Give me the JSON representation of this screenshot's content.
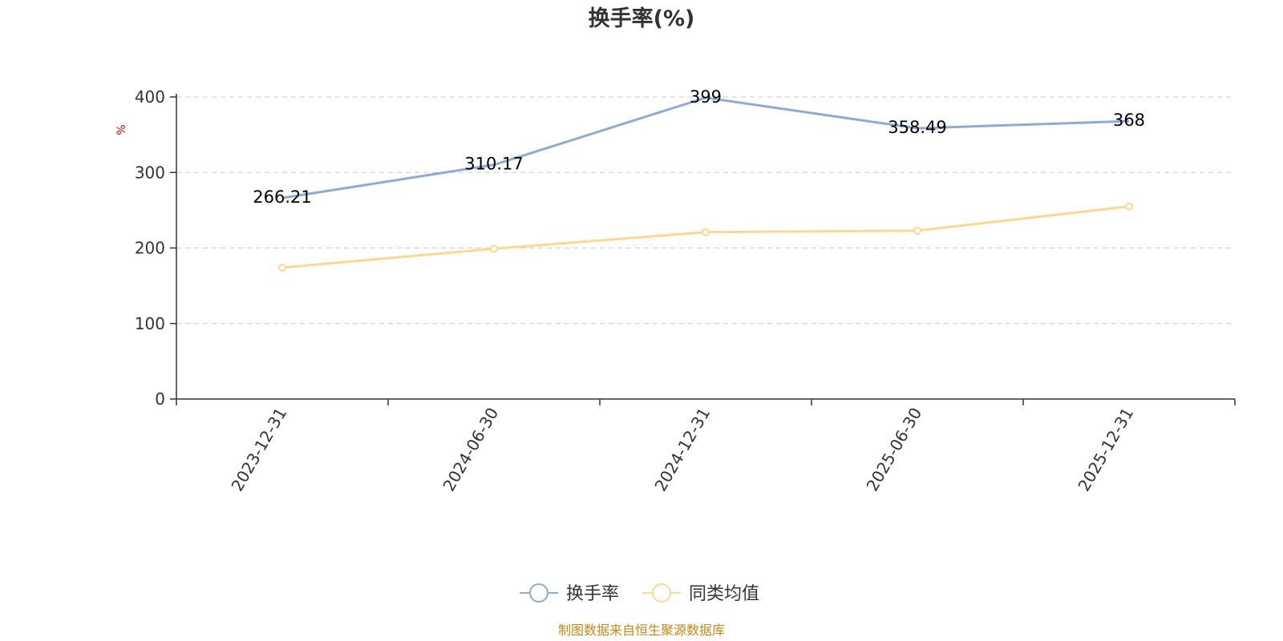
{
  "chart_data": {
    "type": "line",
    "title": "换手率(%)",
    "ylabel": "%",
    "xlabel": "",
    "categories": [
      "2023-12-31",
      "2024-06-30",
      "2024-12-31",
      "2025-06-30",
      "2025-12-31"
    ],
    "ylim": [
      0,
      400
    ],
    "yticks": [
      "0",
      "100",
      "200",
      "300",
      "400"
    ],
    "grid": true,
    "legend_position": "bottom",
    "series": [
      {
        "name": "换手率",
        "values": [
          266.21,
          310.17,
          399,
          358.49,
          368
        ],
        "labels": [
          "266.21",
          "310.17",
          "399",
          "358.49",
          "368"
        ],
        "color": "#8eaad6"
      },
      {
        "name": "同类均值",
        "values": [
          174,
          199,
          221,
          223,
          255
        ],
        "color": "#fdd893"
      }
    ]
  },
  "footnote": "制图数据来自恒生聚源数据库"
}
